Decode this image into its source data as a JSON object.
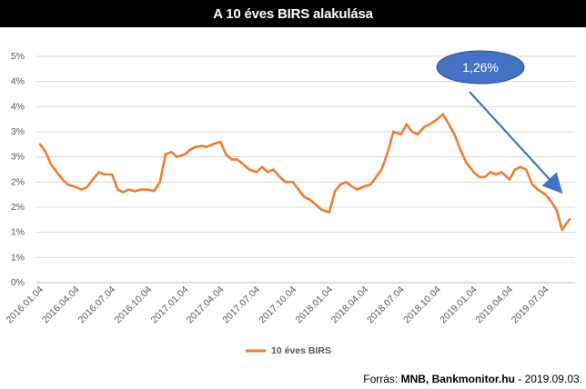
{
  "header": {
    "title": "A 10 éves BIRS alakulása"
  },
  "footer": {
    "prefix": "Forrás: ",
    "sources": "MNB, Bankmonitor.hu",
    "suffix": " - 2019.09.03."
  },
  "colors": {
    "series": "#ED7D31",
    "callout": "#4472C4",
    "grid": "#D9D9D9"
  },
  "chart_data": {
    "type": "line",
    "title": "A 10 éves BIRS alakulása",
    "xlabel": "",
    "ylabel": "",
    "y_ticks": [
      0,
      0.5,
      1,
      1.5,
      2,
      2.5,
      3,
      3.5,
      4,
      4.5
    ],
    "y_tick_labels": [
      "0%",
      "1%",
      "1%",
      "2%",
      "2%",
      "3%",
      "3%",
      "4%",
      "4%",
      "5%"
    ],
    "ylim": [
      0,
      4.5
    ],
    "grid": true,
    "legend": "bottom",
    "x_tick_labels": [
      "2016.01.04",
      "2016.04.04",
      "2016.07.04",
      "2016.10.04",
      "2017.01.04",
      "2017.04.04",
      "2017.07.04",
      "2017.10.04",
      "2018.01.04",
      "2018.04.04",
      "2018.07.04",
      "2018.10.04",
      "2019.01.04",
      "2019.04.04",
      "2019.07.04"
    ],
    "series": [
      {
        "name": "10 éves BIRS",
        "x": [
          "2016.01.04",
          "2016.01.18",
          "2016.02.01",
          "2016.02.15",
          "2016.03.01",
          "2016.03.15",
          "2016.04.04",
          "2016.04.18",
          "2016.05.02",
          "2016.05.16",
          "2016.06.01",
          "2016.06.15",
          "2016.07.04",
          "2016.07.18",
          "2016.08.01",
          "2016.08.15",
          "2016.09.01",
          "2016.09.15",
          "2016.10.04",
          "2016.10.18",
          "2016.11.02",
          "2016.11.16",
          "2016.12.01",
          "2016.12.15",
          "2017.01.04",
          "2017.01.18",
          "2017.02.01",
          "2017.02.15",
          "2017.03.01",
          "2017.03.15",
          "2017.04.04",
          "2017.04.18",
          "2017.05.02",
          "2017.05.16",
          "2017.06.01",
          "2017.06.15",
          "2017.07.04",
          "2017.07.18",
          "2017.08.01",
          "2017.08.15",
          "2017.09.01",
          "2017.09.15",
          "2017.10.04",
          "2017.10.18",
          "2017.11.02",
          "2017.11.16",
          "2017.12.01",
          "2017.12.15",
          "2018.01.04",
          "2018.01.18",
          "2018.02.01",
          "2018.02.15",
          "2018.03.01",
          "2018.03.15",
          "2018.04.04",
          "2018.04.18",
          "2018.05.02",
          "2018.05.16",
          "2018.06.01",
          "2018.06.15",
          "2018.07.04",
          "2018.07.18",
          "2018.08.01",
          "2018.08.15",
          "2018.09.01",
          "2018.09.15",
          "2018.10.04",
          "2018.10.18",
          "2018.11.02",
          "2018.11.16",
          "2018.12.01",
          "2018.12.15",
          "2019.01.04",
          "2019.01.18",
          "2019.02.01",
          "2019.02.15",
          "2019.03.01",
          "2019.03.15",
          "2019.04.04",
          "2019.04.18",
          "2019.05.02",
          "2019.05.16",
          "2019.06.01",
          "2019.06.15",
          "2019.07.04",
          "2019.07.18",
          "2019.08.01",
          "2019.08.15",
          "2019.09.03"
        ],
        "values": [
          2.75,
          2.6,
          2.35,
          2.2,
          2.05,
          1.95,
          1.9,
          1.85,
          1.9,
          2.05,
          2.2,
          2.15,
          2.15,
          1.85,
          1.8,
          1.85,
          1.82,
          1.85,
          1.85,
          1.82,
          2.0,
          2.55,
          2.6,
          2.5,
          2.55,
          2.65,
          2.7,
          2.72,
          2.7,
          2.75,
          2.8,
          2.55,
          2.45,
          2.45,
          2.35,
          2.25,
          2.2,
          2.3,
          2.2,
          2.25,
          2.1,
          2.0,
          2.0,
          1.85,
          1.7,
          1.65,
          1.55,
          1.45,
          1.4,
          1.82,
          1.95,
          2.0,
          1.92,
          1.85,
          1.92,
          1.95,
          2.1,
          2.25,
          2.6,
          3.0,
          2.95,
          3.15,
          3.0,
          2.95,
          3.1,
          3.15,
          3.25,
          3.35,
          3.15,
          2.95,
          2.65,
          2.4,
          2.2,
          2.1,
          2.1,
          2.2,
          2.15,
          2.2,
          2.05,
          2.25,
          2.3,
          2.25,
          1.95,
          1.85,
          1.75,
          1.62,
          1.45,
          1.05,
          1.26
        ]
      }
    ],
    "annotations": [
      {
        "text": "1,26%",
        "target_x": "2019.09.03",
        "target_y": 1.26
      }
    ]
  }
}
